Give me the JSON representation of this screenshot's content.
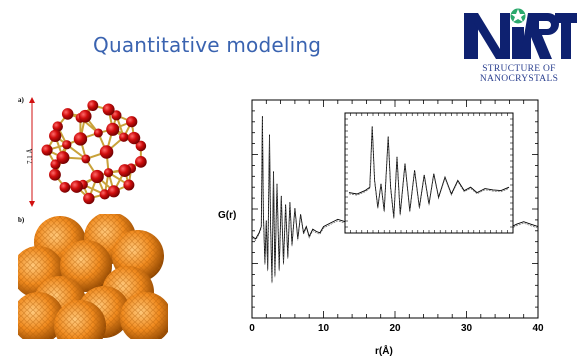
{
  "slide": {
    "title": "Quantitative modeling"
  },
  "logo": {
    "mark": "NIRT",
    "line1": "STRUCTURE   OF",
    "line2": "NANOCRYSTALS"
  },
  "panels": {
    "a_label": "a)",
    "a_dimension": "7.1 Å",
    "b_label": "b)"
  },
  "chart_data": {
    "type": "line",
    "ylabel": "G(r)",
    "xlabel": "r(Å)",
    "xlim": [
      0,
      40
    ],
    "x_ticks": [
      "0",
      "10",
      "20",
      "30",
      "40"
    ],
    "series": [
      {
        "x": [
          0,
          0.5,
          1,
          1.3,
          1.45,
          1.6,
          1.8,
          2.0,
          2.2,
          2.45,
          2.6,
          2.8,
          3.0,
          3.2,
          3.5,
          3.8,
          4.1,
          4.4,
          4.7,
          5.0,
          5.3,
          5.6,
          6.0,
          6.4,
          6.8,
          7.2,
          7.6,
          8.0,
          8.5,
          9,
          9.5,
          10,
          11,
          12,
          13,
          14,
          15,
          16,
          17,
          18,
          19,
          20,
          21,
          22,
          23,
          24,
          25,
          26,
          27,
          28,
          29,
          30,
          31,
          32,
          33,
          34,
          35,
          36,
          37,
          38,
          39,
          40
        ],
        "y": [
          0.02,
          0.0,
          0.05,
          0.1,
          1.0,
          0.2,
          -0.2,
          0.15,
          -0.25,
          0.85,
          0.1,
          -0.35,
          0.55,
          -0.3,
          0.45,
          -0.25,
          0.35,
          -0.2,
          0.28,
          -0.15,
          0.3,
          -0.05,
          0.25,
          0.0,
          0.2,
          0.05,
          0.1,
          0.02,
          0.08,
          0.06,
          0.05,
          0.1,
          0.13,
          0.16,
          0.14,
          0.1,
          0.12,
          0.16,
          0.14,
          0.1,
          0.12,
          0.15,
          0.11,
          0.09,
          0.12,
          0.15,
          0.13,
          0.18,
          0.14,
          0.1,
          0.13,
          0.16,
          0.12,
          0.09,
          0.11,
          0.14,
          0.11,
          0.09,
          0.12,
          0.14,
          0.12,
          0.1
        ]
      }
    ],
    "inset": {
      "xlim": [
        0,
        10
      ],
      "series": [
        {
          "x": [
            0,
            0.5,
            1,
            1.3,
            1.45,
            1.6,
            1.8,
            2.0,
            2.2,
            2.45,
            2.6,
            2.8,
            3.0,
            3.2,
            3.5,
            3.8,
            4.1,
            4.4,
            4.7,
            5.0,
            5.3,
            5.6,
            6.0,
            6.4,
            6.8,
            7.2,
            7.6,
            8.0,
            8.5,
            9,
            9.5,
            10
          ],
          "y": [
            0.02,
            0.0,
            0.05,
            0.1,
            1.0,
            0.2,
            -0.2,
            0.15,
            -0.25,
            0.85,
            0.1,
            -0.35,
            0.55,
            -0.3,
            0.45,
            -0.25,
            0.35,
            -0.2,
            0.28,
            -0.15,
            0.3,
            -0.05,
            0.25,
            0.0,
            0.2,
            0.05,
            0.1,
            0.02,
            0.08,
            0.06,
            0.05,
            0.1
          ]
        }
      ]
    }
  }
}
